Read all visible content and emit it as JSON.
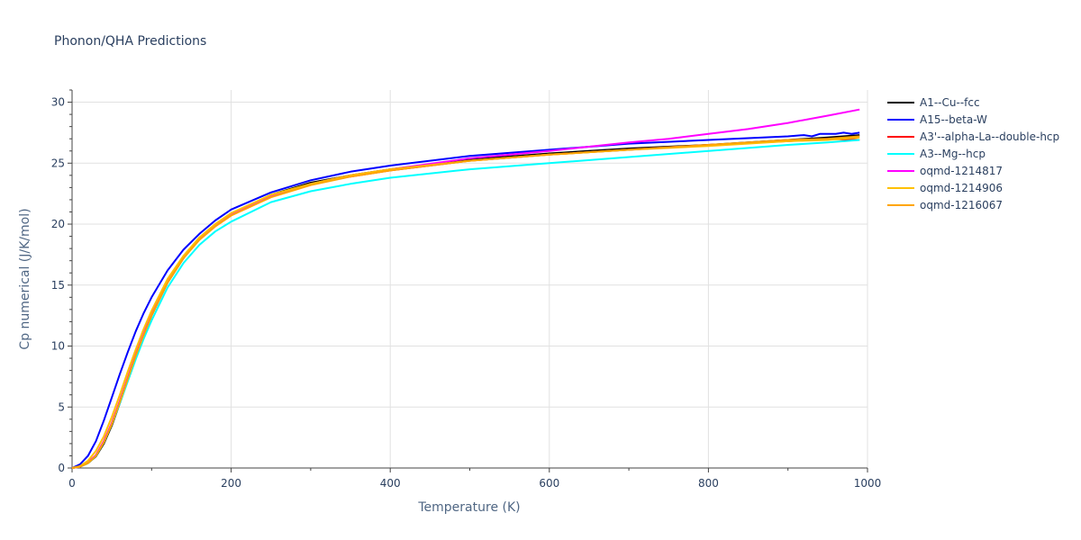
{
  "chart_data": {
    "type": "line",
    "title": "Phonon/QHA Predictions",
    "xlabel": "Temperature (K)",
    "ylabel": "Cp numerical (J/K/mol)",
    "xlim": [
      0,
      1000
    ],
    "ylim": [
      0,
      31
    ],
    "xticks": [
      0,
      200,
      400,
      600,
      800,
      1000
    ],
    "yticks": [
      0,
      5,
      10,
      15,
      20,
      25,
      30
    ],
    "grid": true,
    "legend_position": "top-right",
    "series": [
      {
        "name": "A1--Cu--fcc",
        "color": "#000000",
        "x": [
          0,
          10,
          20,
          30,
          40,
          50,
          60,
          70,
          80,
          90,
          100,
          120,
          140,
          160,
          180,
          200,
          250,
          300,
          350,
          400,
          500,
          600,
          700,
          800,
          900,
          950,
          990
        ],
        "y": [
          0,
          0.1,
          0.4,
          0.95,
          2.0,
          3.5,
          5.3,
          7.2,
          9.1,
          10.9,
          12.5,
          15.2,
          17.2,
          18.8,
          19.9,
          20.8,
          22.4,
          23.4,
          24.0,
          24.5,
          25.3,
          25.8,
          26.2,
          26.5,
          26.9,
          27.1,
          27.3
        ]
      },
      {
        "name": "A15--beta-W",
        "color": "#0000ff",
        "x": [
          0,
          10,
          20,
          30,
          40,
          50,
          60,
          70,
          80,
          90,
          100,
          120,
          140,
          160,
          180,
          200,
          250,
          300,
          350,
          400,
          500,
          600,
          700,
          800,
          900,
          920,
          930,
          940,
          960,
          970,
          980,
          990
        ],
        "y": [
          0,
          0.3,
          1.0,
          2.2,
          3.9,
          5.8,
          7.7,
          9.5,
          11.2,
          12.7,
          14.0,
          16.2,
          17.9,
          19.2,
          20.3,
          21.2,
          22.6,
          23.6,
          24.3,
          24.8,
          25.6,
          26.1,
          26.6,
          26.9,
          27.2,
          27.3,
          27.2,
          27.4,
          27.4,
          27.5,
          27.4,
          27.5
        ]
      },
      {
        "name": "A3'--alpha-La--double-hcp",
        "color": "#ff0000",
        "x": [
          0,
          10,
          20,
          30,
          40,
          50,
          60,
          70,
          80,
          90,
          100,
          120,
          140,
          160,
          180,
          200,
          250,
          300,
          350,
          400,
          500,
          600,
          700,
          800,
          900,
          950,
          990
        ],
        "y": [
          0,
          0.1,
          0.45,
          1.05,
          2.2,
          3.7,
          5.5,
          7.4,
          9.3,
          11.0,
          12.6,
          15.3,
          17.3,
          18.8,
          19.9,
          20.8,
          22.3,
          23.3,
          23.9,
          24.4,
          25.2,
          25.7,
          26.1,
          26.5,
          26.8,
          27.0,
          26.9
        ]
      },
      {
        "name": "A3--Mg--hcp",
        "color": "#00ffff",
        "x": [
          0,
          10,
          20,
          30,
          40,
          50,
          60,
          70,
          80,
          90,
          100,
          120,
          140,
          160,
          180,
          200,
          250,
          300,
          350,
          400,
          500,
          600,
          700,
          800,
          900,
          950,
          990
        ],
        "y": [
          0,
          0.1,
          0.4,
          1.0,
          2.1,
          3.6,
          5.3,
          7.1,
          8.9,
          10.6,
          12.1,
          14.8,
          16.8,
          18.3,
          19.4,
          20.2,
          21.8,
          22.7,
          23.3,
          23.8,
          24.5,
          25.0,
          25.5,
          26.0,
          26.5,
          26.7,
          26.9
        ]
      },
      {
        "name": "oqmd-1214817",
        "color": "#ff00ff",
        "x": [
          0,
          10,
          20,
          30,
          40,
          50,
          60,
          70,
          80,
          90,
          100,
          120,
          140,
          160,
          180,
          200,
          250,
          300,
          350,
          400,
          500,
          600,
          700,
          750,
          800,
          850,
          900,
          950,
          990
        ],
        "y": [
          0,
          0.1,
          0.45,
          1.05,
          2.2,
          3.7,
          5.5,
          7.4,
          9.3,
          11.0,
          12.6,
          15.3,
          17.3,
          18.8,
          19.9,
          20.8,
          22.3,
          23.3,
          24.0,
          24.5,
          25.4,
          26.0,
          26.7,
          27.0,
          27.4,
          27.8,
          28.3,
          28.9,
          29.4
        ]
      },
      {
        "name": "oqmd-1214906",
        "color": "#ffc000",
        "x": [
          0,
          10,
          20,
          30,
          40,
          50,
          60,
          70,
          80,
          90,
          100,
          120,
          140,
          160,
          180,
          200,
          250,
          300,
          350,
          400,
          500,
          600,
          700,
          800,
          900,
          950,
          990
        ],
        "y": [
          0,
          0.15,
          0.6,
          1.4,
          2.6,
          4.2,
          6.0,
          7.9,
          9.7,
          11.4,
          12.9,
          15.5,
          17.4,
          18.9,
          20.0,
          20.9,
          22.4,
          23.3,
          24.0,
          24.5,
          25.2,
          25.7,
          26.1,
          26.4,
          26.8,
          26.9,
          27.1
        ]
      },
      {
        "name": "oqmd-1216067",
        "color": "#ffa500",
        "x": [
          0,
          10,
          20,
          30,
          40,
          50,
          60,
          70,
          80,
          90,
          100,
          120,
          140,
          160,
          180,
          200,
          250,
          300,
          350,
          400,
          500,
          600,
          700,
          800,
          900,
          950,
          990
        ],
        "y": [
          0,
          0.1,
          0.4,
          1.0,
          2.1,
          3.6,
          5.4,
          7.3,
          9.2,
          10.9,
          12.5,
          15.2,
          17.2,
          18.7,
          19.8,
          20.7,
          22.2,
          23.2,
          23.9,
          24.4,
          25.2,
          25.7,
          26.1,
          26.5,
          26.9,
          27.0,
          27.2
        ]
      }
    ]
  }
}
